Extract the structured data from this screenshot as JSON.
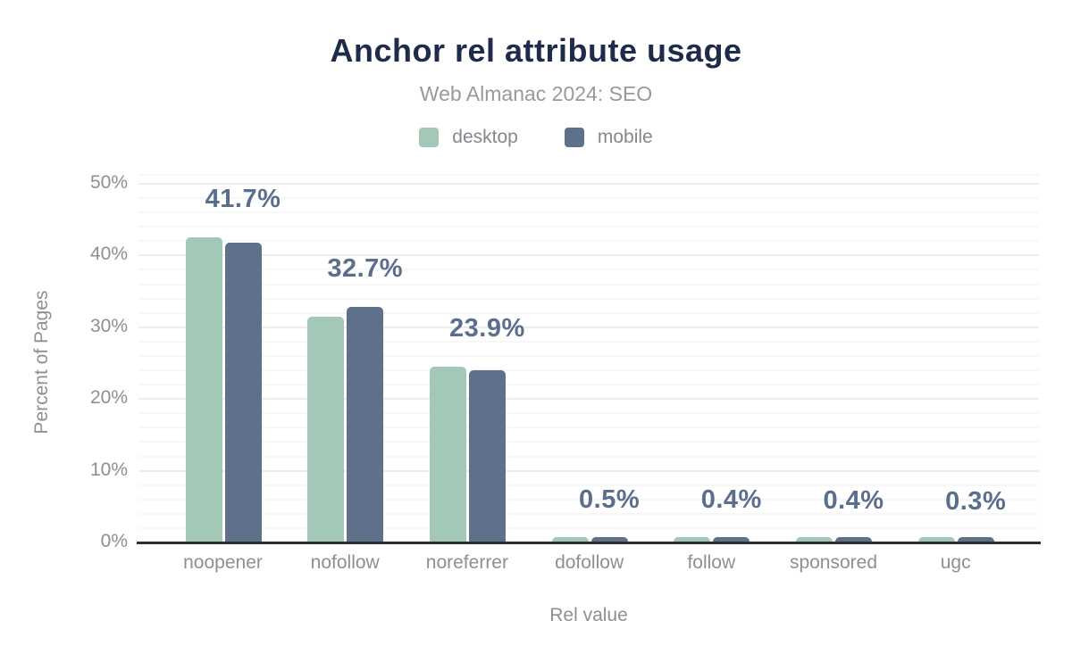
{
  "chart_data": {
    "type": "bar",
    "title": "Anchor rel attribute usage",
    "subtitle": "Web Almanac 2024: SEO",
    "xlabel": "Rel value",
    "ylabel": "Percent of Pages",
    "categories": [
      "noopener",
      "nofollow",
      "noreferrer",
      "dofollow",
      "follow",
      "sponsored",
      "ugc"
    ],
    "series": [
      {
        "name": "desktop",
        "color": "#a4c8b7",
        "values": [
          42.4,
          31.3,
          24.4,
          0.4,
          0.5,
          0.4,
          0.3
        ]
      },
      {
        "name": "mobile",
        "color": "#5f708b",
        "values": [
          41.7,
          32.7,
          23.9,
          0.5,
          0.4,
          0.4,
          0.3
        ]
      }
    ],
    "bar_labels": {
      "labeled_series": "mobile",
      "values": [
        "41.7%",
        "32.7%",
        "23.9%",
        "0.5%",
        "0.4%",
        "0.4%",
        "0.3%"
      ]
    },
    "ylim": [
      0,
      50
    ],
    "yticks": [
      "0%",
      "10%",
      "20%",
      "30%",
      "40%",
      "50%"
    ],
    "ytick_values": [
      0,
      10,
      20,
      30,
      40,
      50
    ],
    "grid": "horizontal, minor every 2%, major every 10%",
    "legend_position": "top-center"
  },
  "colors": {
    "title": "#1e2b4b",
    "subtitle": "#97999e",
    "axis_text": "#8d8f93",
    "legend_text": "#85878c",
    "value_label": "#5c6e8d",
    "axis_line": "#2e2e30",
    "desktop_series": "#a4c8b7",
    "mobile_series": "#5f708b"
  }
}
